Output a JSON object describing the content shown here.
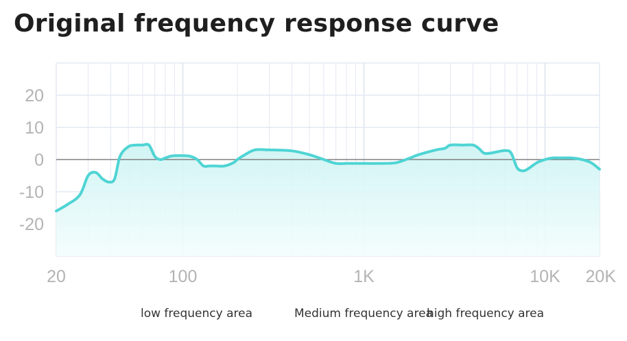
{
  "title": "Original frequency response curve",
  "area_labels": {
    "low": "low frequency area",
    "medium": "Medium frequency area",
    "high": "high frequency area"
  },
  "colors": {
    "curve": "#4fd4d4",
    "fill_top": "#cdf3f3",
    "fill_bottom": "#f3fdfd",
    "grid": "#e4e8f2",
    "zero_line": "#808080",
    "tick_text": "#b3b3b3"
  },
  "chart_data": {
    "type": "area",
    "title": "Original frequency response curve",
    "xscale": "log",
    "xlim": [
      20,
      20000
    ],
    "ylim": [
      -30,
      30
    ],
    "yticks": [
      20,
      10,
      0,
      -10,
      -20
    ],
    "ytick_labels": [
      "20",
      "10",
      "0",
      "-10",
      "-20"
    ],
    "xticks": [
      20,
      100,
      1000,
      10000,
      20000
    ],
    "xtick_labels": [
      "20",
      "100",
      "1K",
      "10K",
      "20K"
    ],
    "grid": true,
    "series": [
      {
        "x": [
          20,
          23,
          27,
          30,
          33,
          36,
          39,
          42,
          45,
          50,
          55,
          60,
          65,
          70,
          75,
          80,
          85,
          90,
          100,
          110,
          120,
          130,
          140,
          150,
          170,
          190,
          200,
          220,
          250,
          300,
          400,
          500,
          600,
          700,
          800,
          900,
          1000,
          1200,
          1500,
          1800,
          2000,
          2500,
          2800,
          3000,
          3500,
          4000,
          4300,
          4600,
          5000,
          6000,
          6500,
          7000,
          7500,
          8000,
          9000,
          10000,
          11000,
          12000,
          14000,
          16000,
          18000,
          20000
        ],
        "y": [
          -16,
          -14,
          -11,
          -5,
          -4,
          -6,
          -7,
          -6,
          1,
          4,
          4.5,
          4.5,
          4.5,
          1,
          0,
          0.5,
          1,
          1.2,
          1.2,
          1,
          0,
          -2,
          -2,
          -2,
          -2,
          -1,
          0,
          1.5,
          3,
          3,
          2.7,
          1.5,
          0,
          -1.2,
          -1.2,
          -1.2,
          -1.2,
          -1.2,
          -1,
          0.5,
          1.5,
          3,
          3.5,
          4.5,
          4.5,
          4.5,
          3.5,
          2,
          2,
          2.8,
          2,
          -2.5,
          -3.5,
          -3,
          -1,
          0,
          0.5,
          0.5,
          0.5,
          0,
          -1,
          -3
        ]
      }
    ]
  }
}
